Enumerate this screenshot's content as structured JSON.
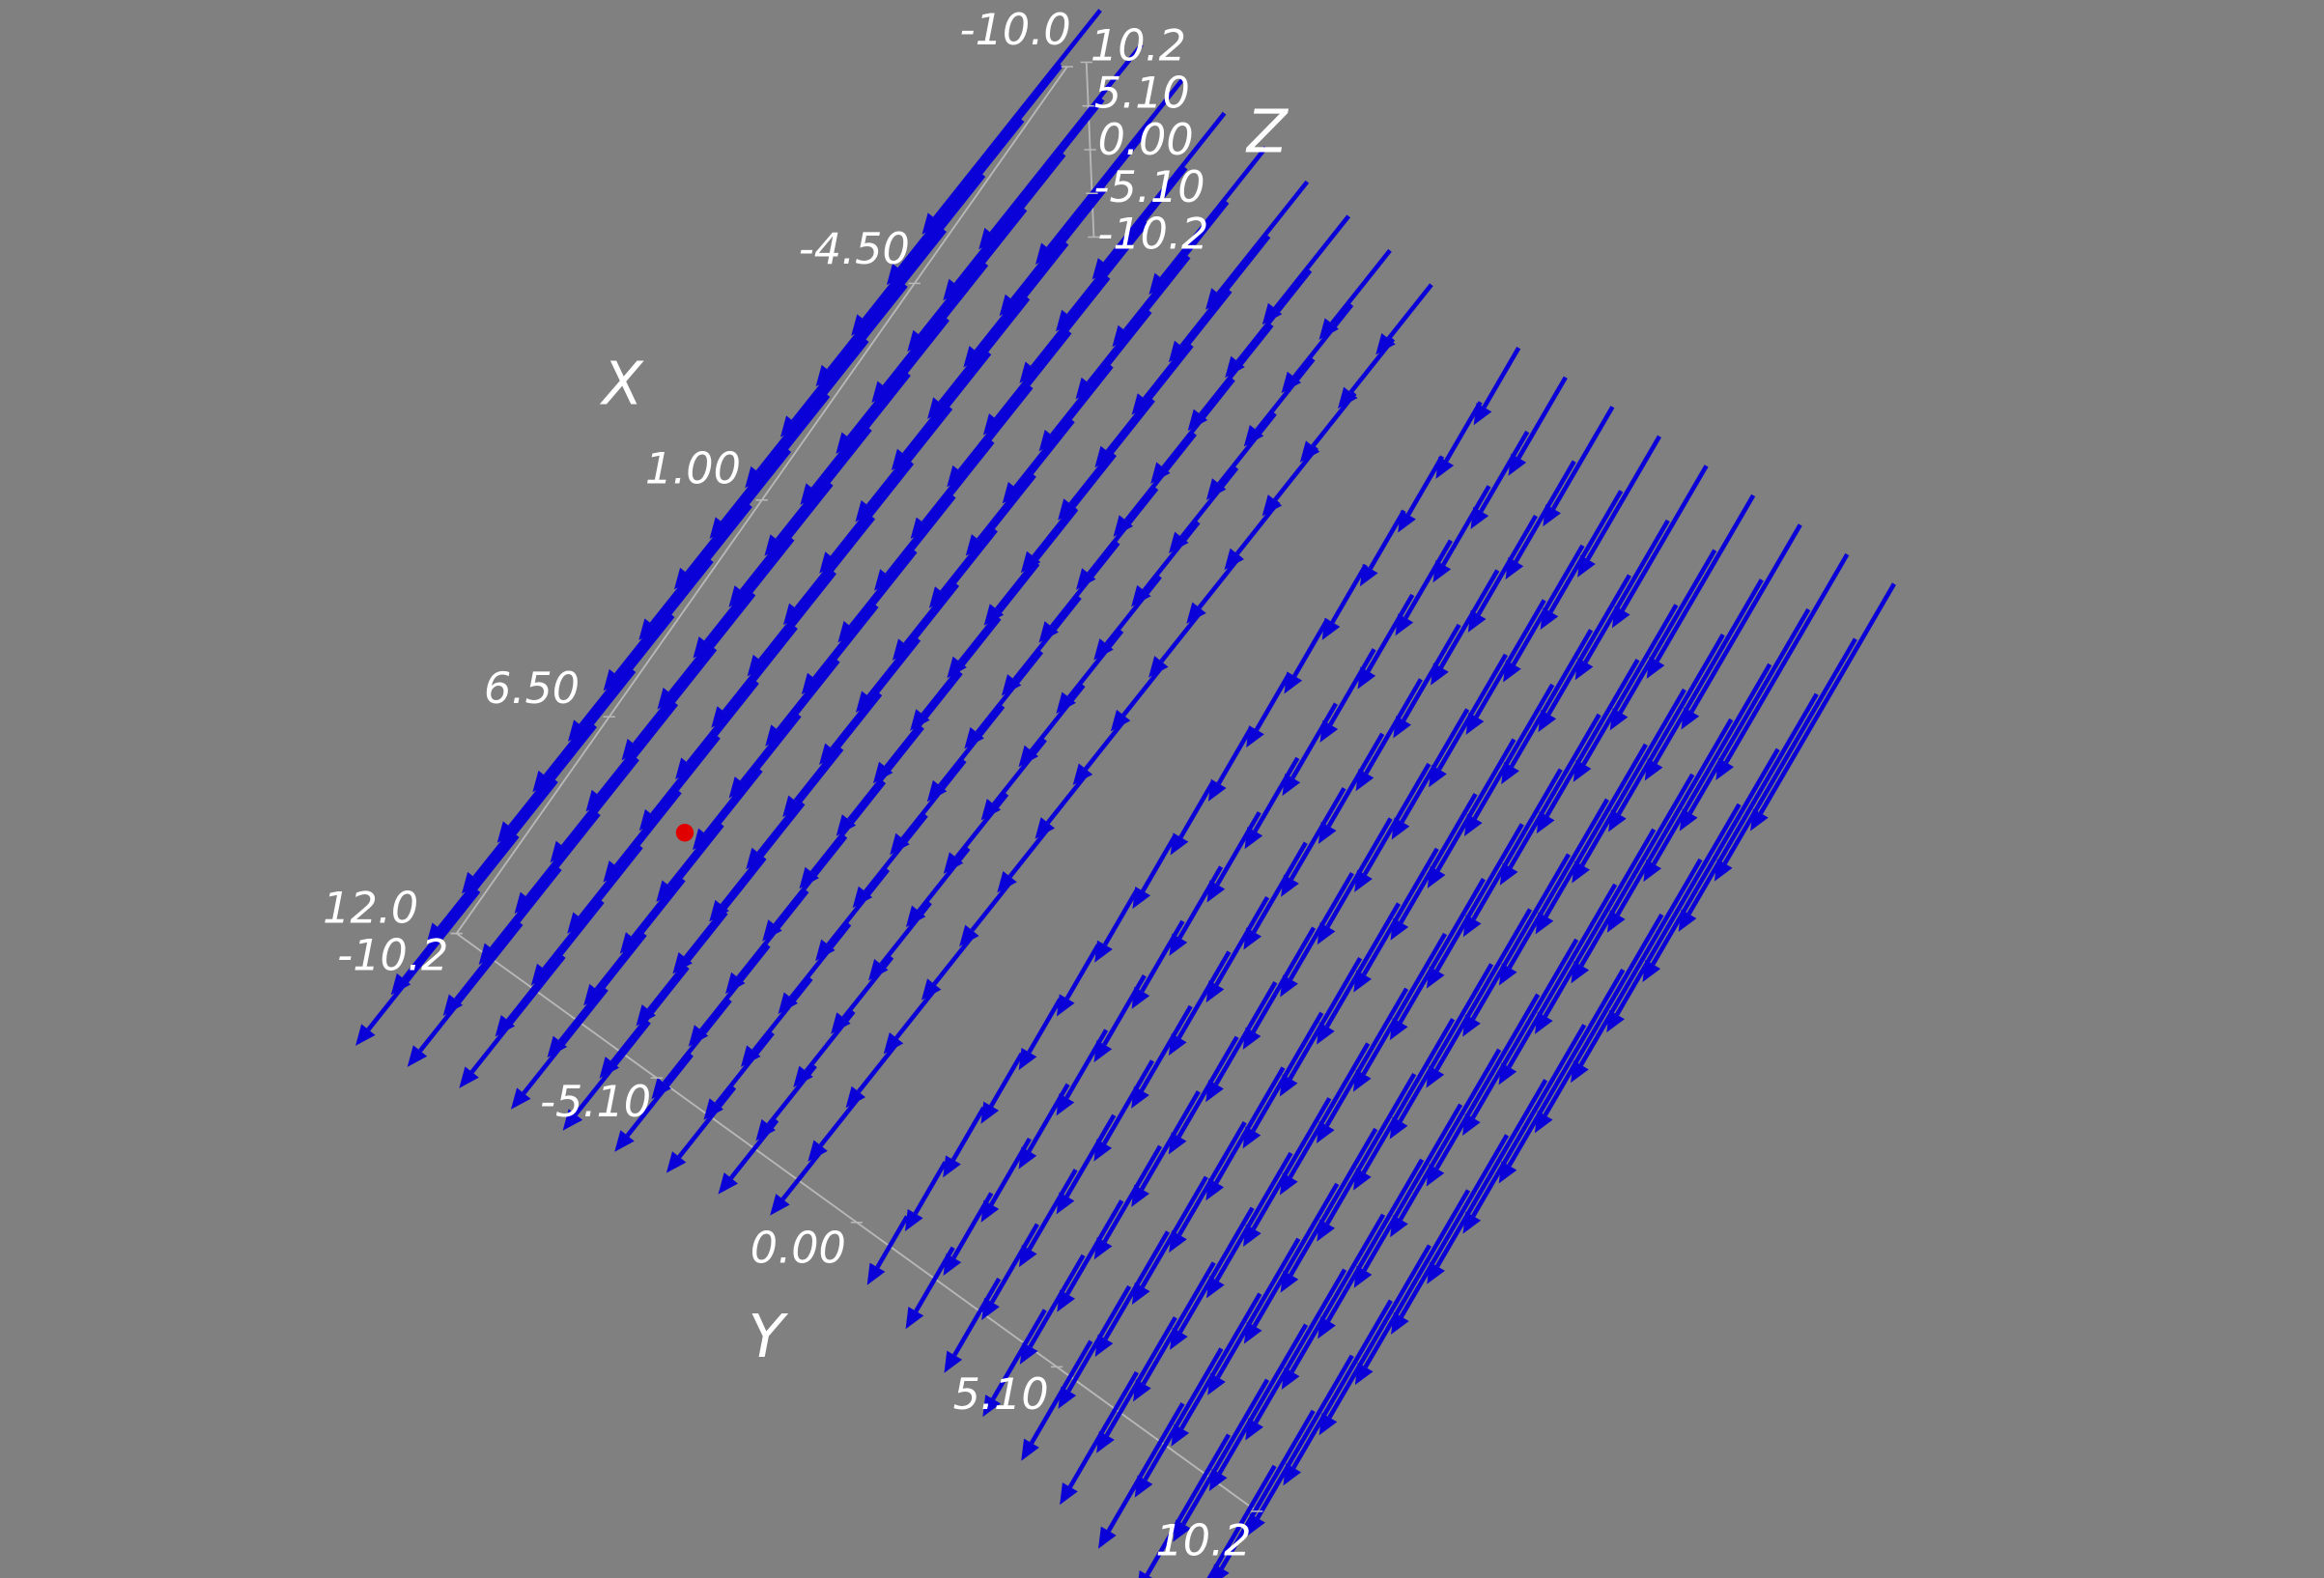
{
  "chart_data": {
    "type": "quiver3d",
    "xlabel": "X",
    "ylabel": "Y",
    "zlabel": "Z",
    "xlim": [
      -10.0,
      12.0
    ],
    "xticks": [
      {
        "value": -10.0,
        "label": "-10.0"
      },
      {
        "value": -4.5,
        "label": "-4.50"
      },
      {
        "value": 1.0,
        "label": "1.00"
      },
      {
        "value": 6.5,
        "label": "6.50"
      },
      {
        "value": 12.0,
        "label": "12.0"
      }
    ],
    "ylim": [
      -10.2,
      10.2
    ],
    "yticks": [
      {
        "value": -10.2,
        "label": "-10.2"
      },
      {
        "value": -5.1,
        "label": "-5.10"
      },
      {
        "value": 0,
        "label": "0.00"
      },
      {
        "value": 5.1,
        "label": "5.10"
      },
      {
        "value": 10.2,
        "label": "10.2"
      }
    ],
    "zlim": [
      -10.2,
      10.2
    ],
    "zticks": [
      {
        "value": 10.2,
        "label": "10.2"
      },
      {
        "value": 5.1,
        "label": "5.10"
      },
      {
        "value": 0,
        "label": "0.00"
      },
      {
        "value": -5.1,
        "label": "-5.10"
      },
      {
        "value": -10.2,
        "label": "-10.2"
      }
    ],
    "color": "#0a00d8"
  }
}
